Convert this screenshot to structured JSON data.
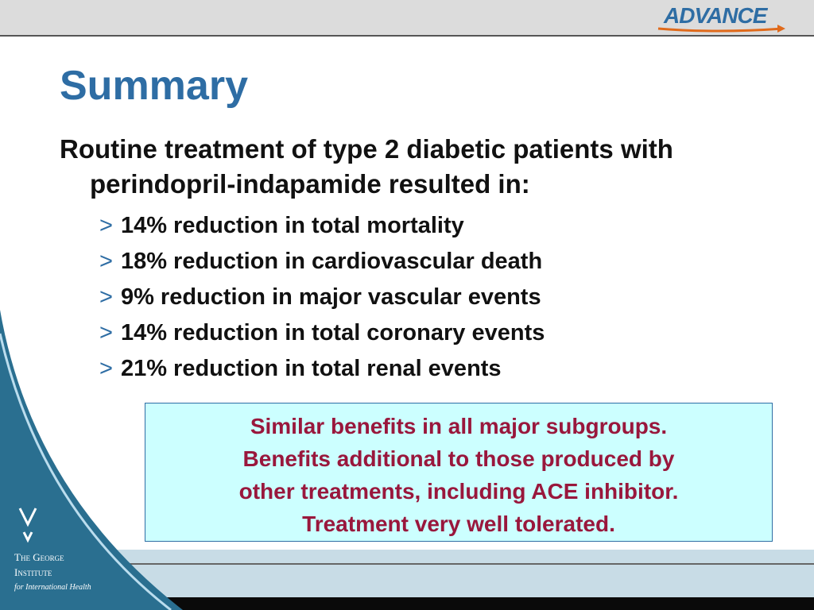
{
  "header": {
    "logo": "ADVANCE"
  },
  "title": "Summary",
  "intro": "Routine treatment of type 2 diabetic patients with perindopril-indapamide resulted in:",
  "bullet_marker": ">",
  "bullets": [
    "14% reduction in total mortality",
    "18% reduction in cardiovascular death",
    "9% reduction in major vascular events",
    "14% reduction in total coronary events",
    "21% reduction in total renal events"
  ],
  "box": [
    "Similar benefits in all major subgroups.",
    "Benefits additional to those produced by",
    "other treatments, including ACE inhibitor.",
    "Treatment very well tolerated."
  ],
  "institute": [
    "The George",
    "Institute",
    "for International Health"
  ]
}
